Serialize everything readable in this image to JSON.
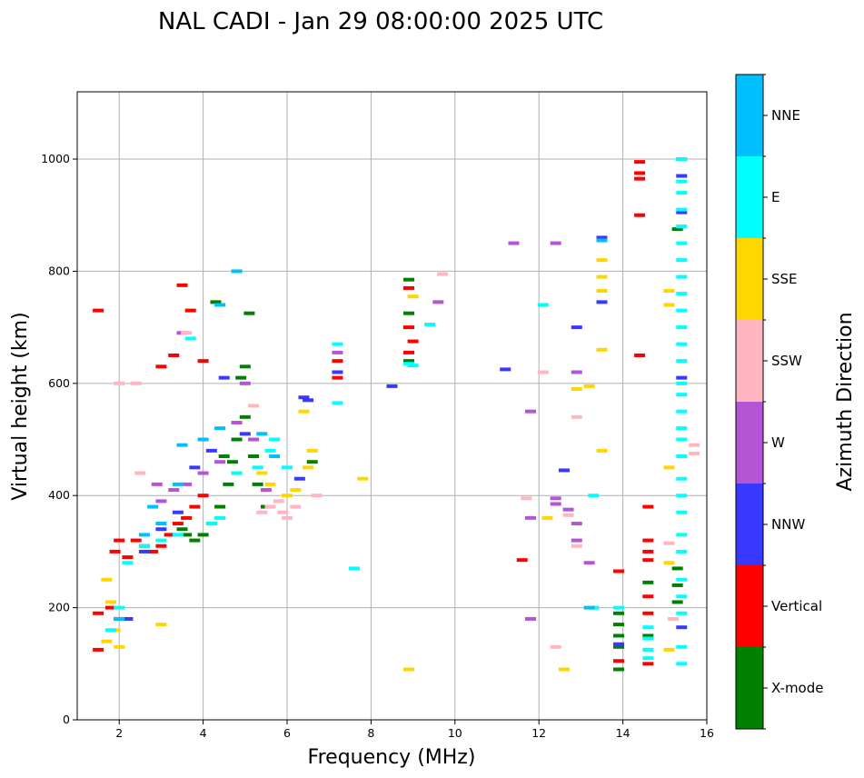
{
  "chart_data": {
    "type": "scatter",
    "title": "NAL CADI - Jan 29 08:00:00 2025 UTC",
    "xlabel": "Frequency (MHz)",
    "ylabel": "Virtual height (km)",
    "xlim": [
      1,
      16
    ],
    "ylim": [
      0,
      1120
    ],
    "x_ticks": [
      2,
      4,
      6,
      8,
      10,
      12,
      14,
      16
    ],
    "y_ticks": [
      0,
      200,
      400,
      600,
      800,
      1000
    ],
    "grid": true,
    "colorbar": {
      "title": "Azimuth Direction",
      "position": "right",
      "categories": [
        {
          "label": "X-mode",
          "color": "#008000"
        },
        {
          "label": "Vertical",
          "color": "#ff0000"
        },
        {
          "label": "NNW",
          "color": "#3838ff"
        },
        {
          "label": "W",
          "color": "#b455d6"
        },
        {
          "label": "SSW",
          "color": "#ffb6c1"
        },
        {
          "label": "SSE",
          "color": "#ffd700"
        },
        {
          "label": "E",
          "color": "#00ffff"
        },
        {
          "label": "NNE",
          "color": "#00bfff"
        }
      ]
    },
    "series": [
      {
        "name": "X-mode",
        "points": [
          [
            4.0,
            330
          ],
          [
            4.2,
            350
          ],
          [
            4.4,
            380
          ],
          [
            4.6,
            420
          ],
          [
            4.7,
            460
          ],
          [
            4.8,
            500
          ],
          [
            5.0,
            540
          ],
          [
            5.0,
            630
          ],
          [
            5.2,
            470
          ],
          [
            5.3,
            420
          ],
          [
            5.5,
            380
          ],
          [
            3.8,
            320
          ],
          [
            3.6,
            330
          ],
          [
            4.9,
            610
          ],
          [
            4.5,
            470
          ],
          [
            6.6,
            460
          ],
          [
            8.9,
            640
          ],
          [
            8.9,
            785
          ],
          [
            8.9,
            725
          ],
          [
            13.9,
            190
          ],
          [
            13.9,
            170
          ],
          [
            13.9,
            150
          ],
          [
            13.9,
            130
          ],
          [
            13.9,
            90
          ],
          [
            14.6,
            245
          ],
          [
            14.6,
            150
          ],
          [
            15.3,
            270
          ],
          [
            15.3,
            240
          ],
          [
            15.3,
            210
          ],
          [
            15.3,
            875
          ],
          [
            5.1,
            725
          ],
          [
            4.3,
            745
          ],
          [
            3.5,
            340
          ]
        ]
      },
      {
        "name": "Vertical",
        "points": [
          [
            1.5,
            730
          ],
          [
            1.5,
            190
          ],
          [
            1.5,
            125
          ],
          [
            1.9,
            300
          ],
          [
            2.0,
            320
          ],
          [
            2.2,
            290
          ],
          [
            2.4,
            320
          ],
          [
            2.6,
            310
          ],
          [
            2.8,
            300
          ],
          [
            3.0,
            310
          ],
          [
            3.2,
            330
          ],
          [
            3.4,
            350
          ],
          [
            3.6,
            360
          ],
          [
            3.8,
            380
          ],
          [
            4.0,
            400
          ],
          [
            3.7,
            730
          ],
          [
            3.0,
            630
          ],
          [
            3.3,
            650
          ],
          [
            3.5,
            775
          ],
          [
            4.0,
            640
          ],
          [
            7.2,
            610
          ],
          [
            7.2,
            640
          ],
          [
            8.9,
            655
          ],
          [
            8.9,
            700
          ],
          [
            8.9,
            770
          ],
          [
            9.0,
            675
          ],
          [
            11.6,
            285
          ],
          [
            13.9,
            265
          ],
          [
            13.9,
            105
          ],
          [
            14.4,
            995
          ],
          [
            14.4,
            975
          ],
          [
            14.4,
            965
          ],
          [
            14.4,
            900
          ],
          [
            14.4,
            650
          ],
          [
            14.6,
            380
          ],
          [
            14.6,
            320
          ],
          [
            14.6,
            300
          ],
          [
            14.6,
            285
          ],
          [
            14.6,
            220
          ],
          [
            14.6,
            190
          ],
          [
            14.6,
            100
          ],
          [
            2.0,
            180
          ],
          [
            1.8,
            200
          ]
        ]
      },
      {
        "name": "NNW",
        "points": [
          [
            2.6,
            300
          ],
          [
            3.0,
            340
          ],
          [
            3.4,
            370
          ],
          [
            3.8,
            450
          ],
          [
            4.2,
            480
          ],
          [
            4.5,
            610
          ],
          [
            5.0,
            510
          ],
          [
            6.5,
            570
          ],
          [
            6.4,
            575
          ],
          [
            6.3,
            430
          ],
          [
            7.2,
            620
          ],
          [
            8.5,
            595
          ],
          [
            11.2,
            625
          ],
          [
            12.6,
            445
          ],
          [
            12.9,
            700
          ],
          [
            13.5,
            745
          ],
          [
            13.5,
            860
          ],
          [
            13.9,
            135
          ],
          [
            15.4,
            1000
          ],
          [
            15.4,
            970
          ],
          [
            15.4,
            905
          ],
          [
            15.4,
            610
          ],
          [
            15.4,
            165
          ],
          [
            2.2,
            180
          ]
        ]
      },
      {
        "name": "W",
        "points": [
          [
            3.0,
            390
          ],
          [
            3.3,
            410
          ],
          [
            3.6,
            420
          ],
          [
            4.0,
            440
          ],
          [
            4.4,
            460
          ],
          [
            4.8,
            530
          ],
          [
            5.0,
            600
          ],
          [
            5.2,
            500
          ],
          [
            5.5,
            410
          ],
          [
            7.2,
            655
          ],
          [
            9.6,
            745
          ],
          [
            11.4,
            850
          ],
          [
            11.8,
            550
          ],
          [
            11.8,
            360
          ],
          [
            11.8,
            180
          ],
          [
            12.4,
            850
          ],
          [
            12.4,
            395
          ],
          [
            12.4,
            385
          ],
          [
            12.7,
            375
          ],
          [
            12.9,
            620
          ],
          [
            12.9,
            350
          ],
          [
            12.9,
            320
          ],
          [
            13.2,
            280
          ],
          [
            3.5,
            690
          ],
          [
            2.9,
            420
          ]
        ]
      },
      {
        "name": "SSW",
        "points": [
          [
            2.4,
            600
          ],
          [
            2.5,
            440
          ],
          [
            3.6,
            690
          ],
          [
            5.2,
            560
          ],
          [
            5.4,
            370
          ],
          [
            5.6,
            380
          ],
          [
            5.8,
            390
          ],
          [
            5.9,
            370
          ],
          [
            6.0,
            360
          ],
          [
            6.2,
            380
          ],
          [
            6.7,
            400
          ],
          [
            9.7,
            795
          ],
          [
            11.7,
            395
          ],
          [
            12.1,
            620
          ],
          [
            12.4,
            130
          ],
          [
            12.7,
            365
          ],
          [
            12.9,
            540
          ],
          [
            12.9,
            310
          ],
          [
            15.1,
            315
          ],
          [
            15.2,
            180
          ],
          [
            15.7,
            490
          ],
          [
            15.7,
            475
          ],
          [
            2.0,
            600
          ]
        ]
      },
      {
        "name": "SSE",
        "points": [
          [
            1.7,
            250
          ],
          [
            1.8,
            210
          ],
          [
            1.9,
            160
          ],
          [
            2.0,
            130
          ],
          [
            1.7,
            140
          ],
          [
            3.0,
            170
          ],
          [
            5.4,
            440
          ],
          [
            5.6,
            420
          ],
          [
            6.0,
            400
          ],
          [
            6.2,
            410
          ],
          [
            6.5,
            450
          ],
          [
            6.6,
            480
          ],
          [
            6.4,
            550
          ],
          [
            7.8,
            430
          ],
          [
            8.9,
            90
          ],
          [
            9.0,
            755
          ],
          [
            12.2,
            360
          ],
          [
            12.6,
            90
          ],
          [
            12.9,
            590
          ],
          [
            13.2,
            595
          ],
          [
            13.5,
            820
          ],
          [
            13.5,
            790
          ],
          [
            13.5,
            765
          ],
          [
            13.5,
            660
          ],
          [
            13.5,
            480
          ],
          [
            15.1,
            765
          ],
          [
            15.1,
            740
          ],
          [
            15.1,
            450
          ],
          [
            15.1,
            280
          ],
          [
            15.1,
            125
          ]
        ]
      },
      {
        "name": "E",
        "points": [
          [
            1.8,
            160
          ],
          [
            2.0,
            200
          ],
          [
            2.2,
            280
          ],
          [
            2.6,
            310
          ],
          [
            3.0,
            320
          ],
          [
            3.4,
            330
          ],
          [
            3.7,
            680
          ],
          [
            4.2,
            350
          ],
          [
            4.4,
            360
          ],
          [
            4.8,
            440
          ],
          [
            5.3,
            450
          ],
          [
            5.6,
            480
          ],
          [
            5.7,
            500
          ],
          [
            6.0,
            450
          ],
          [
            7.2,
            565
          ],
          [
            7.2,
            670
          ],
          [
            7.6,
            270
          ],
          [
            8.9,
            635
          ],
          [
            9.0,
            632
          ],
          [
            9.4,
            705
          ],
          [
            12.1,
            740
          ],
          [
            13.3,
            400
          ],
          [
            13.3,
            200
          ],
          [
            13.9,
            200
          ],
          [
            14.6,
            165
          ],
          [
            14.6,
            145
          ],
          [
            14.6,
            125
          ],
          [
            14.6,
            110
          ],
          [
            15.4,
            1000
          ],
          [
            15.4,
            960
          ],
          [
            15.4,
            940
          ],
          [
            15.4,
            910
          ],
          [
            15.4,
            880
          ],
          [
            15.4,
            850
          ],
          [
            15.4,
            820
          ],
          [
            15.4,
            790
          ],
          [
            15.4,
            760
          ],
          [
            15.4,
            730
          ],
          [
            15.4,
            700
          ],
          [
            15.4,
            670
          ],
          [
            15.4,
            640
          ],
          [
            15.4,
            600
          ],
          [
            15.4,
            580
          ],
          [
            15.4,
            550
          ],
          [
            15.4,
            520
          ],
          [
            15.4,
            500
          ],
          [
            15.4,
            470
          ],
          [
            15.4,
            430
          ],
          [
            15.4,
            400
          ],
          [
            15.4,
            370
          ],
          [
            15.4,
            330
          ],
          [
            15.4,
            300
          ],
          [
            15.4,
            250
          ],
          [
            15.4,
            220
          ],
          [
            15.4,
            190
          ],
          [
            15.4,
            130
          ],
          [
            15.4,
            100
          ]
        ]
      },
      {
        "name": "NNE",
        "points": [
          [
            2.0,
            180
          ],
          [
            2.6,
            330
          ],
          [
            3.0,
            350
          ],
          [
            3.4,
            420
          ],
          [
            3.5,
            490
          ],
          [
            4.0,
            500
          ],
          [
            4.4,
            520
          ],
          [
            4.4,
            740
          ],
          [
            4.8,
            800
          ],
          [
            5.4,
            510
          ],
          [
            5.7,
            470
          ],
          [
            13.5,
            855
          ],
          [
            13.2,
            200
          ],
          [
            2.8,
            380
          ]
        ]
      }
    ]
  }
}
